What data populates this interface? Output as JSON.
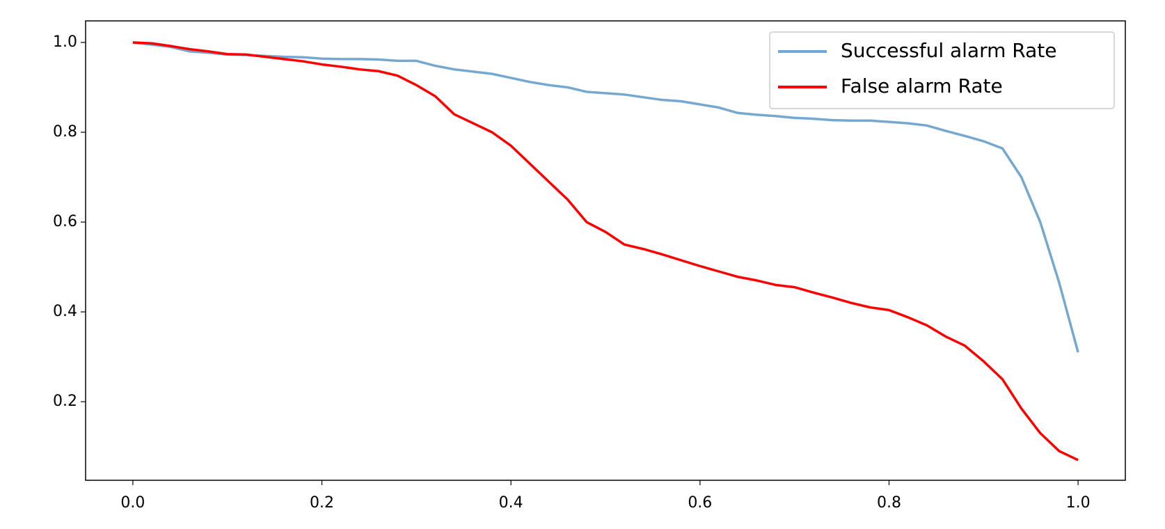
{
  "chart_data": {
    "type": "line",
    "x": [
      0,
      0.02,
      0.04,
      0.06,
      0.08,
      0.1,
      0.12,
      0.14,
      0.16,
      0.18,
      0.2,
      0.22,
      0.24,
      0.26,
      0.28,
      0.3,
      0.32,
      0.34,
      0.36,
      0.38,
      0.4,
      0.42,
      0.44,
      0.46,
      0.48,
      0.5,
      0.52,
      0.54,
      0.56,
      0.58,
      0.6,
      0.62,
      0.64,
      0.66,
      0.68,
      0.7,
      0.72,
      0.74,
      0.76,
      0.78,
      0.8,
      0.82,
      0.84,
      0.86,
      0.88,
      0.9,
      0.92,
      0.94,
      0.96,
      0.98,
      1.0
    ],
    "series": [
      {
        "name": "Successful alarm Rate",
        "color": "#75a8d0",
        "values": [
          1.0,
          0.995,
          0.99,
          0.98,
          0.977,
          0.973,
          0.972,
          0.97,
          0.968,
          0.967,
          0.964,
          0.963,
          0.963,
          0.962,
          0.959,
          0.959,
          0.948,
          0.94,
          0.935,
          0.93,
          0.921,
          0.912,
          0.905,
          0.9,
          0.89,
          0.887,
          0.884,
          0.878,
          0.872,
          0.869,
          0.862,
          0.855,
          0.843,
          0.839,
          0.836,
          0.832,
          0.83,
          0.827,
          0.826,
          0.826,
          0.823,
          0.82,
          0.815,
          0.803,
          0.792,
          0.78,
          0.764,
          0.7,
          0.6,
          0.465,
          0.31
        ]
      },
      {
        "name": "False alarm Rate",
        "color": "#ff0000",
        "values": [
          1.0,
          0.998,
          0.992,
          0.985,
          0.98,
          0.974,
          0.973,
          0.968,
          0.963,
          0.958,
          0.951,
          0.946,
          0.94,
          0.936,
          0.926,
          0.905,
          0.88,
          0.84,
          0.82,
          0.8,
          0.77,
          0.73,
          0.69,
          0.65,
          0.6,
          0.578,
          0.55,
          0.54,
          0.528,
          0.515,
          0.502,
          0.49,
          0.478,
          0.47,
          0.46,
          0.455,
          0.443,
          0.432,
          0.42,
          0.41,
          0.404,
          0.388,
          0.37,
          0.345,
          0.325,
          0.29,
          0.25,
          0.185,
          0.13,
          0.09,
          0.07
        ]
      }
    ],
    "xlim": [
      -0.05,
      1.05
    ],
    "ylim": [
      0.025,
      1.048
    ],
    "xticks": [
      {
        "value": 0,
        "label": "0.0"
      },
      0.2,
      0.4,
      0.6,
      0.8,
      {
        "value": 1,
        "label": "1.0"
      }
    ],
    "yticks": [
      0.2,
      0.4,
      0.6,
      0.8,
      {
        "value": 1,
        "label": "1.0"
      }
    ],
    "legend": "upper right"
  }
}
